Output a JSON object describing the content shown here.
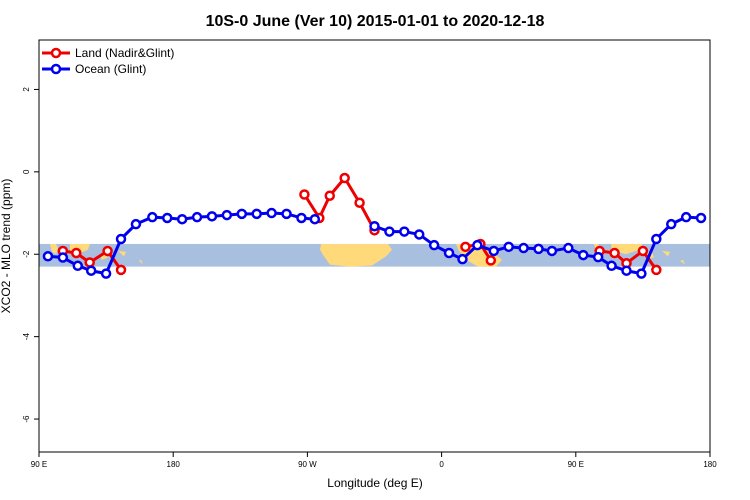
{
  "chart_data": {
    "type": "line",
    "title": "10S-0 June (Ver 10)   2015-01-01 to 2020-12-18",
    "xlabel": "Longitude (deg E)",
    "ylabel": "XCO2 - MLO trend (ppm)",
    "xlim": [
      90,
      540
    ],
    "ylim": [
      -6.8,
      3.2
    ],
    "x_ticks": [
      {
        "value": 90,
        "label": "90 E"
      },
      {
        "value": 180,
        "label": "180"
      },
      {
        "value": 270,
        "label": "90 W"
      },
      {
        "value": 360,
        "label": "0"
      },
      {
        "value": 450,
        "label": "90 E"
      },
      {
        "value": 540,
        "label": "180"
      }
    ],
    "y_ticks": [
      {
        "value": 2,
        "label": "2"
      },
      {
        "value": 0,
        "label": "0"
      },
      {
        "value": -2,
        "label": "-2"
      },
      {
        "value": -4,
        "label": "-4"
      },
      {
        "value": -6,
        "label": "-6"
      }
    ],
    "legend_position": "top-left",
    "map_strip": {
      "y_min": -2.3,
      "y_max": -1.75,
      "ocean_color": "#a8bfdf",
      "land_color": "#ffd97a"
    },
    "series": [
      {
        "name": "Land (Nadir&Glint)",
        "color": "#ee0000",
        "segments": [
          [
            [
              106,
              -1.92
            ],
            [
              115,
              -1.97
            ],
            [
              124,
              -2.2
            ],
            [
              136,
              -1.92
            ],
            [
              145,
              -2.38
            ]
          ],
          [
            [
              268,
              -0.55
            ],
            [
              278,
              -1.12
            ],
            [
              285,
              -0.58
            ],
            [
              295,
              -0.15
            ],
            [
              305,
              -0.75
            ],
            [
              315,
              -1.42
            ]
          ],
          [
            [
              376,
              -1.82
            ],
            [
              386,
              -1.75
            ],
            [
              393,
              -2.15
            ]
          ],
          [
            [
              466,
              -1.92
            ],
            [
              476,
              -1.97
            ],
            [
              484,
              -2.22
            ],
            [
              495,
              -1.92
            ],
            [
              504,
              -2.38
            ]
          ]
        ]
      },
      {
        "name": "Ocean (Glint)",
        "color": "#0000ee",
        "segments": [
          [
            [
              96,
              -2.05
            ],
            [
              106,
              -2.08
            ],
            [
              116,
              -2.28
            ],
            [
              125,
              -2.4
            ],
            [
              135,
              -2.47
            ],
            [
              145,
              -1.63
            ],
            [
              155,
              -1.27
            ],
            [
              166,
              -1.1
            ],
            [
              176,
              -1.12
            ],
            [
              186,
              -1.15
            ],
            [
              196,
              -1.1
            ],
            [
              206,
              -1.08
            ],
            [
              216,
              -1.05
            ],
            [
              226,
              -1.02
            ],
            [
              236,
              -1.02
            ],
            [
              246,
              -1.0
            ],
            [
              256,
              -1.02
            ],
            [
              266,
              -1.12
            ],
            [
              275,
              -1.15
            ]
          ],
          [
            [
              315,
              -1.32
            ],
            [
              325,
              -1.45
            ],
            [
              335,
              -1.45
            ],
            [
              345,
              -1.52
            ],
            [
              355,
              -1.78
            ],
            [
              365,
              -1.97
            ],
            [
              374,
              -2.12
            ],
            [
              384,
              -1.78
            ],
            [
              395,
              -1.92
            ],
            [
              405,
              -1.82
            ],
            [
              415,
              -1.85
            ],
            [
              425,
              -1.87
            ],
            [
              434,
              -1.92
            ],
            [
              445,
              -1.85
            ],
            [
              455,
              -2.02
            ],
            [
              465,
              -2.07
            ],
            [
              474,
              -2.28
            ],
            [
              484,
              -2.4
            ],
            [
              494,
              -2.47
            ],
            [
              504,
              -1.63
            ],
            [
              514,
              -1.27
            ],
            [
              524,
              -1.1
            ],
            [
              534,
              -1.12
            ]
          ]
        ]
      }
    ]
  }
}
